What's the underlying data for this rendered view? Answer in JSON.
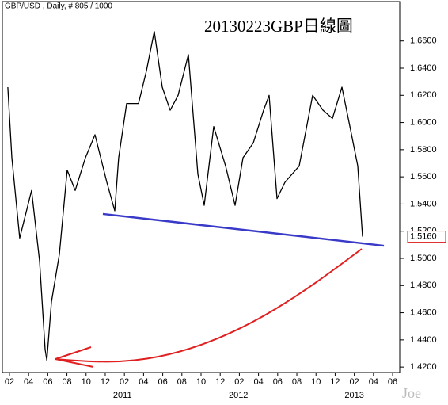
{
  "chart_data": {
    "type": "line",
    "title": "GBP/USD , Daily, # 805 / 1000",
    "annotation": "20130223GBP日線圖",
    "watermark": "Joe",
    "series": [
      {
        "name": "GBP/USD",
        "color": "#000000",
        "x": [
          0.83,
          1.25,
          2.07,
          3.31,
          4.14,
          4.72,
          4.9,
          5.38,
          6.21,
          7.03,
          7.86,
          8.93,
          9.93,
          11.17,
          11.99,
          12.4,
          13.23,
          14.47,
          15.3,
          16.12,
          16.95,
          17.78,
          18.6,
          19.68,
          20.67,
          21.33,
          22.32,
          23.56,
          24.55,
          25.38,
          26.45,
          27.53,
          28.11,
          28.93,
          29.76,
          31.25,
          32.65,
          33.73,
          34.72,
          35.71,
          36.54,
          37.36,
          37.86
        ],
        "values": [
          1.626,
          1.574,
          1.515,
          1.55,
          1.498,
          1.433,
          1.425,
          1.468,
          1.503,
          1.565,
          1.55,
          1.574,
          1.591,
          1.556,
          1.535,
          1.574,
          1.614,
          1.614,
          1.638,
          1.667,
          1.626,
          1.609,
          1.62,
          1.65,
          1.562,
          1.539,
          1.597,
          1.568,
          1.539,
          1.574,
          1.585,
          1.609,
          1.62,
          1.544,
          1.556,
          1.568,
          1.62,
          1.609,
          1.603,
          1.626,
          1.597,
          1.568,
          1.516
        ]
      }
    ],
    "trendline": {
      "color": "#3a3ac8",
      "x": [
        10.75,
        40.09
      ],
      "values": [
        1.5327,
        1.5093
      ]
    },
    "last_price": {
      "value": 1.516,
      "label": "1.5160",
      "color": "#d22"
    },
    "xlim": [
      0.26,
      41.74
    ],
    "ylim": [
      1.416,
      1.689
    ],
    "xticks": [
      {
        "value": 1,
        "label": "02"
      },
      {
        "value": 3,
        "label": "04"
      },
      {
        "value": 5,
        "label": "06"
      },
      {
        "value": 7,
        "label": "08"
      },
      {
        "value": 9,
        "label": "10"
      },
      {
        "value": 11,
        "label": "12"
      },
      {
        "value": 13,
        "label": "02"
      },
      {
        "value": 15,
        "label": "04"
      },
      {
        "value": 17,
        "label": "06"
      },
      {
        "value": 19,
        "label": "08"
      },
      {
        "value": 21,
        "label": "10"
      },
      {
        "value": 23,
        "label": "12"
      },
      {
        "value": 25,
        "label": "02"
      },
      {
        "value": 27,
        "label": "04"
      },
      {
        "value": 29,
        "label": "06"
      },
      {
        "value": 31,
        "label": "08"
      },
      {
        "value": 33,
        "label": "10"
      },
      {
        "value": 35,
        "label": "12"
      },
      {
        "value": 37,
        "label": "02"
      },
      {
        "value": 39,
        "label": "04"
      },
      {
        "value": 41,
        "label": "06"
      }
    ],
    "year_ticks": [
      {
        "value": 12.8,
        "label": "2011"
      },
      {
        "value": 24.9,
        "label": "2012"
      },
      {
        "value": 37,
        "label": "2013"
      }
    ],
    "yticks": [
      {
        "value": 1.42,
        "label": "1.4200"
      },
      {
        "value": 1.44,
        "label": "1.4400"
      },
      {
        "value": 1.46,
        "label": "1.4600"
      },
      {
        "value": 1.48,
        "label": "1.4800"
      },
      {
        "value": 1.5,
        "label": "1.5000"
      },
      {
        "value": 1.52,
        "label": "1.5200"
      },
      {
        "value": 1.54,
        "label": "1.5400"
      },
      {
        "value": 1.56,
        "label": "1.5600"
      },
      {
        "value": 1.58,
        "label": "1.5800"
      },
      {
        "value": 1.6,
        "label": "1.6000"
      },
      {
        "value": 1.62,
        "label": "1.6200"
      },
      {
        "value": 1.64,
        "label": "1.6400"
      },
      {
        "value": 1.66,
        "label": "1.6600"
      }
    ]
  }
}
